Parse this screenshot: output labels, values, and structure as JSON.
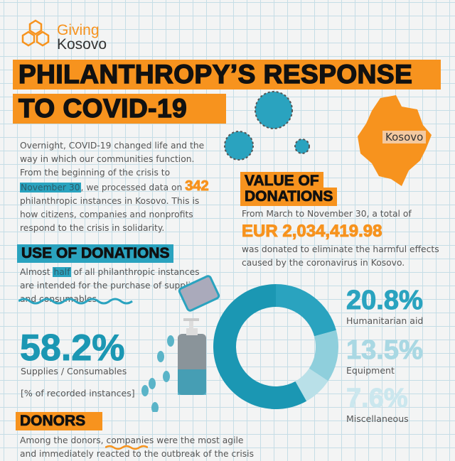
{
  "logo": {
    "line1": "Giving",
    "line2": "Kosovo"
  },
  "title": {
    "line1": "PHILANTHROPY’S RESPONSE",
    "line2": "TO COVID-19"
  },
  "map": {
    "label": "Kosovo"
  },
  "intro": {
    "p1": "Overnight, COVID-19 changed life and the way in which our communities function. From the beginning of the crisis to",
    "highlight": "November 30",
    "p2": ", we processed data on",
    "count": "342",
    "p3": "philanthropic instances in Kosovo. This is how citizens, companies and nonprofits respond to the crisis in solidarity."
  },
  "value": {
    "heading_line1": "VALUE OF",
    "heading_line2": "DONATIONS",
    "pre": "From March to November 30, a total of",
    "amount": "EUR 2,034,419.98",
    "post": "was donated to eliminate the harmful effects caused by the coronavirus in Kosovo."
  },
  "use": {
    "heading": "USE OF DONATIONS",
    "t1": "Almost ",
    "highlight": "half",
    "t2": " of all philanthropic instances are intended for the purchase of supplies and consumables.",
    "main_value": "58.2%",
    "main_label": "Supplies / Consumables",
    "note": "[% of recorded instances]"
  },
  "donors": {
    "heading": "DONORS",
    "text": "Among the donors, companies were the most agile and immediately reacted to the outbreak of the crisis"
  },
  "colors": {
    "orange": "#f7931e",
    "teal": "#1b97b3",
    "teal_mid": "#2aa3bf",
    "teal_light": "#8fcfdc",
    "teal_lighter": "#b9e0e8"
  },
  "chart_data": {
    "type": "pie",
    "variant": "donut",
    "categories": [
      "Humanitarian aid",
      "Equipment",
      "Miscellaneous",
      "Supplies / Consumables"
    ],
    "values": [
      20.8,
      13.5,
      7.6,
      58.2
    ],
    "labels": [
      "20.8%",
      "13.5%",
      "7.6%",
      "58.2%"
    ],
    "colors": [
      "#2aa3bf",
      "#8fcfdc",
      "#b9e0e8",
      "#1b97b3"
    ]
  }
}
